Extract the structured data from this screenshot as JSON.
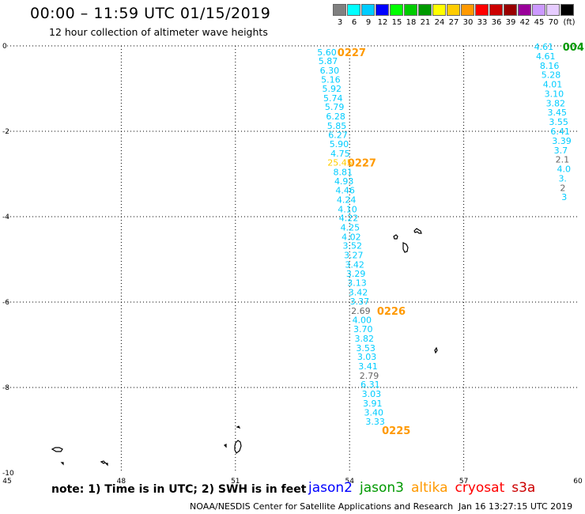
{
  "header": {
    "title": "00:00 – 11:59 UTC 01/15/2019",
    "subtitle": "12 hour collection of altimeter wave heights"
  },
  "colorbar": {
    "unit_label": "(ft)",
    "levels": [
      {
        "label": "3",
        "color": "#808080"
      },
      {
        "label": "6",
        "color": "#00ffff"
      },
      {
        "label": "9",
        "color": "#00ccff"
      },
      {
        "label": "12",
        "color": "#0000ff"
      },
      {
        "label": "15",
        "color": "#00ff00"
      },
      {
        "label": "18",
        "color": "#00cc00"
      },
      {
        "label": "21",
        "color": "#009900"
      },
      {
        "label": "24",
        "color": "#ffff00"
      },
      {
        "label": "27",
        "color": "#ffcc00"
      },
      {
        "label": "30",
        "color": "#ff9900"
      },
      {
        "label": "33",
        "color": "#ff0000"
      },
      {
        "label": "36",
        "color": "#cc0000"
      },
      {
        "label": "39",
        "color": "#990000"
      },
      {
        "label": "42",
        "color": "#990099"
      },
      {
        "label": "45",
        "color": "#cc99ff"
      },
      {
        "label": "70",
        "color": "#e6ccff"
      },
      {
        "label": "",
        "color": "#000000"
      }
    ]
  },
  "map": {
    "lon_range": [
      45,
      60
    ],
    "lat_range": [
      -10,
      0
    ],
    "lon_ticks": [
      "45",
      "48",
      "51",
      "54",
      "57",
      "60"
    ],
    "lat_ticks": [
      "0",
      "-2",
      "-4",
      "-6",
      "-8",
      "-10"
    ],
    "grid_lon": [
      48,
      51,
      54,
      57
    ],
    "grid_lat": [
      -2,
      -4,
      -6,
      -8
    ],
    "pass_a_color": "#00ccff",
    "time_color": "#ff9900",
    "pass_a": [
      {
        "v": "5.60",
        "lon": 53.15,
        "lat": -0.15
      },
      {
        "v": "5.87",
        "lon": 53.18,
        "lat": -0.35
      },
      {
        "v": "6.30",
        "lon": 53.22,
        "lat": -0.57
      },
      {
        "v": "5.16",
        "lon": 53.25,
        "lat": -0.79
      },
      {
        "v": "5.92",
        "lon": 53.28,
        "lat": -1.0
      },
      {
        "v": "5.74",
        "lon": 53.31,
        "lat": -1.22
      },
      {
        "v": "5.79",
        "lon": 53.35,
        "lat": -1.43
      },
      {
        "v": "6.28",
        "lon": 53.38,
        "lat": -1.65
      },
      {
        "v": "5.85",
        "lon": 53.41,
        "lat": -1.87
      },
      {
        "v": "6.27",
        "lon": 53.44,
        "lat": -2.08
      },
      {
        "v": "5.90",
        "lon": 53.47,
        "lat": -2.3
      },
      {
        "v": "4.75",
        "lon": 53.5,
        "lat": -2.52
      },
      {
        "v": "25.45",
        "lon": 53.42,
        "lat": -2.73,
        "c": "#ffcc00"
      },
      {
        "v": "8.81",
        "lon": 53.57,
        "lat": -2.95
      },
      {
        "v": "4.93",
        "lon": 53.6,
        "lat": -3.17
      },
      {
        "v": "4.46",
        "lon": 53.63,
        "lat": -3.38
      },
      {
        "v": "4.24",
        "lon": 53.66,
        "lat": -3.6
      },
      {
        "v": "4.10",
        "lon": 53.69,
        "lat": -3.82
      },
      {
        "v": "4.22",
        "lon": 53.72,
        "lat": -4.03
      },
      {
        "v": "4.25",
        "lon": 53.76,
        "lat": -4.25
      },
      {
        "v": "4.02",
        "lon": 53.79,
        "lat": -4.47
      },
      {
        "v": "3.52",
        "lon": 53.82,
        "lat": -4.68
      },
      {
        "v": "3.27",
        "lon": 53.85,
        "lat": -4.9
      },
      {
        "v": "3.42",
        "lon": 53.88,
        "lat": -5.12
      },
      {
        "v": "3.29",
        "lon": 53.91,
        "lat": -5.33
      },
      {
        "v": "3.13",
        "lon": 53.94,
        "lat": -5.55
      },
      {
        "v": "3.42",
        "lon": 53.97,
        "lat": -5.77
      },
      {
        "v": "3.37",
        "lon": 54.01,
        "lat": -5.98
      },
      {
        "v": "2.69",
        "lon": 54.04,
        "lat": -6.2,
        "c": "#666666"
      },
      {
        "v": "4.00",
        "lon": 54.07,
        "lat": -6.42
      },
      {
        "v": "3.70",
        "lon": 54.1,
        "lat": -6.63
      },
      {
        "v": "3.82",
        "lon": 54.13,
        "lat": -6.85
      },
      {
        "v": "3.53",
        "lon": 54.17,
        "lat": -7.07
      },
      {
        "v": "3.03",
        "lon": 54.2,
        "lat": -7.28
      },
      {
        "v": "3.41",
        "lon": 54.23,
        "lat": -7.5
      },
      {
        "v": "2.79",
        "lon": 54.26,
        "lat": -7.72,
        "c": "#666666"
      },
      {
        "v": "6.31",
        "lon": 54.29,
        "lat": -7.93
      },
      {
        "v": "3.03",
        "lon": 54.32,
        "lat": -8.15
      },
      {
        "v": "3.91",
        "lon": 54.35,
        "lat": -8.37
      },
      {
        "v": "3.40",
        "lon": 54.38,
        "lat": -8.58
      },
      {
        "v": "3.33",
        "lon": 54.42,
        "lat": -8.8
      }
    ],
    "pass_a_times": [
      {
        "t": "0227",
        "lon": 53.68,
        "lat": -0.15
      },
      {
        "t": "0227",
        "lon": 53.95,
        "lat": -2.73
      },
      {
        "t": "0226",
        "lon": 54.72,
        "lat": -6.2
      },
      {
        "t": "0225",
        "lon": 54.85,
        "lat": -9.0
      }
    ],
    "pass_b": [
      {
        "v": "4.61",
        "lon": 58.85,
        "lat": -0.02
      },
      {
        "v": "4.61",
        "lon": 58.9,
        "lat": -0.24
      },
      {
        "v": "8.16",
        "lon": 59.0,
        "lat": -0.46
      },
      {
        "v": "5.28",
        "lon": 59.04,
        "lat": -0.68
      },
      {
        "v": "4.01",
        "lon": 59.08,
        "lat": -0.9
      },
      {
        "v": "3.10",
        "lon": 59.12,
        "lat": -1.12
      },
      {
        "v": "3.82",
        "lon": 59.16,
        "lat": -1.34
      },
      {
        "v": "3.45",
        "lon": 59.2,
        "lat": -1.56
      },
      {
        "v": "3.55",
        "lon": 59.24,
        "lat": -1.78
      },
      {
        "v": "6.41",
        "lon": 59.28,
        "lat": -2.0
      },
      {
        "v": "3.39",
        "lon": 59.32,
        "lat": -2.22
      },
      {
        "v": "3.7",
        "lon": 59.37,
        "lat": -2.44
      },
      {
        "v": "2.1",
        "lon": 59.41,
        "lat": -2.66,
        "c": "#666666"
      },
      {
        "v": "4.0",
        "lon": 59.45,
        "lat": -2.88
      },
      {
        "v": "3.",
        "lon": 59.49,
        "lat": -3.1
      },
      {
        "v": "2",
        "lon": 59.53,
        "lat": -3.32,
        "c": "#666666"
      },
      {
        "v": "3",
        "lon": 59.57,
        "lat": -3.54
      }
    ],
    "pass_b_time": {
      "t": "004",
      "lon": 59.6,
      "lat": -0.02,
      "c": "#009900"
    }
  },
  "footer": {
    "note": "note:  1) Time is in UTC;  2) SWH is in feet",
    "legend": [
      {
        "label": "jason2",
        "color": "#0000ff"
      },
      {
        "label": "jason3",
        "color": "#009900"
      },
      {
        "label": "altika",
        "color": "#ff9900"
      },
      {
        "label": "cryosat",
        "color": "#ff0000"
      },
      {
        "label": "s3a",
        "color": "#cc0000"
      }
    ],
    "credit": "NOAA/NESDIS Center for Satellite Applications and Research",
    "generated": "Jan 16 13:27:15 UTC 2019"
  }
}
